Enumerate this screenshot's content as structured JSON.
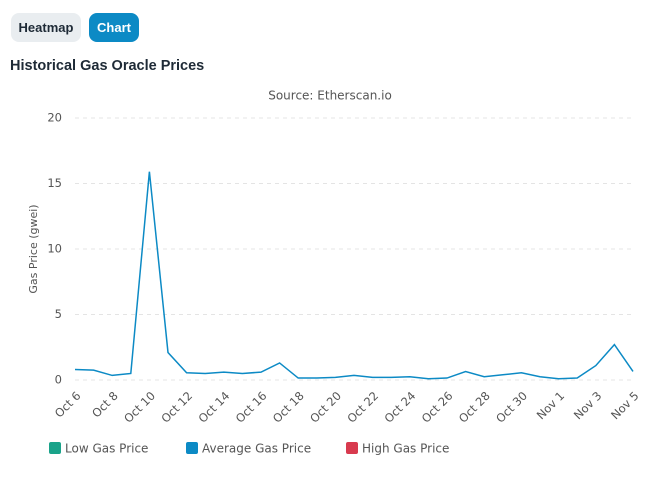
{
  "tabs": [
    "Heatmap",
    "Chart"
  ],
  "heading": "Historical Gas Oracle Prices",
  "chart_data": {
    "type": "line",
    "subtitle": "Source: Etherscan.io",
    "y_label": "Gas Price (gwei)",
    "categories": [
      "Oct 6",
      null,
      "Oct 8",
      null,
      "Oct 10",
      null,
      "Oct 12",
      null,
      "Oct 14",
      null,
      "Oct 16",
      null,
      "Oct 18",
      null,
      "Oct 20",
      null,
      "Oct 22",
      null,
      "Oct 24",
      null,
      "Oct 26",
      null,
      "Oct 28",
      null,
      "Oct 30",
      null,
      "Nov 1",
      null,
      "Nov 3",
      null,
      "Nov 5"
    ],
    "series": [
      {
        "name": "Low Gas Price",
        "color": "#1aa38a",
        "visible": false
      },
      {
        "name": "Average Gas Price",
        "color": "#0c8ac5",
        "visible": true,
        "values": [
          0.8,
          0.75,
          0.35,
          0.5,
          15.9,
          2.1,
          0.55,
          0.5,
          0.6,
          0.5,
          0.6,
          1.3,
          0.15,
          0.15,
          0.2,
          0.35,
          0.2,
          0.2,
          0.25,
          0.1,
          0.15,
          0.65,
          0.25,
          0.4,
          0.55,
          0.25,
          0.1,
          0.15,
          1.1,
          2.7,
          0.65
        ]
      },
      {
        "name": "High Gas Price",
        "color": "#d83a4e",
        "visible": false
      }
    ],
    "ylim": [
      0,
      20
    ],
    "yticks": [
      0,
      5,
      10,
      15,
      20
    ],
    "grid": true
  }
}
